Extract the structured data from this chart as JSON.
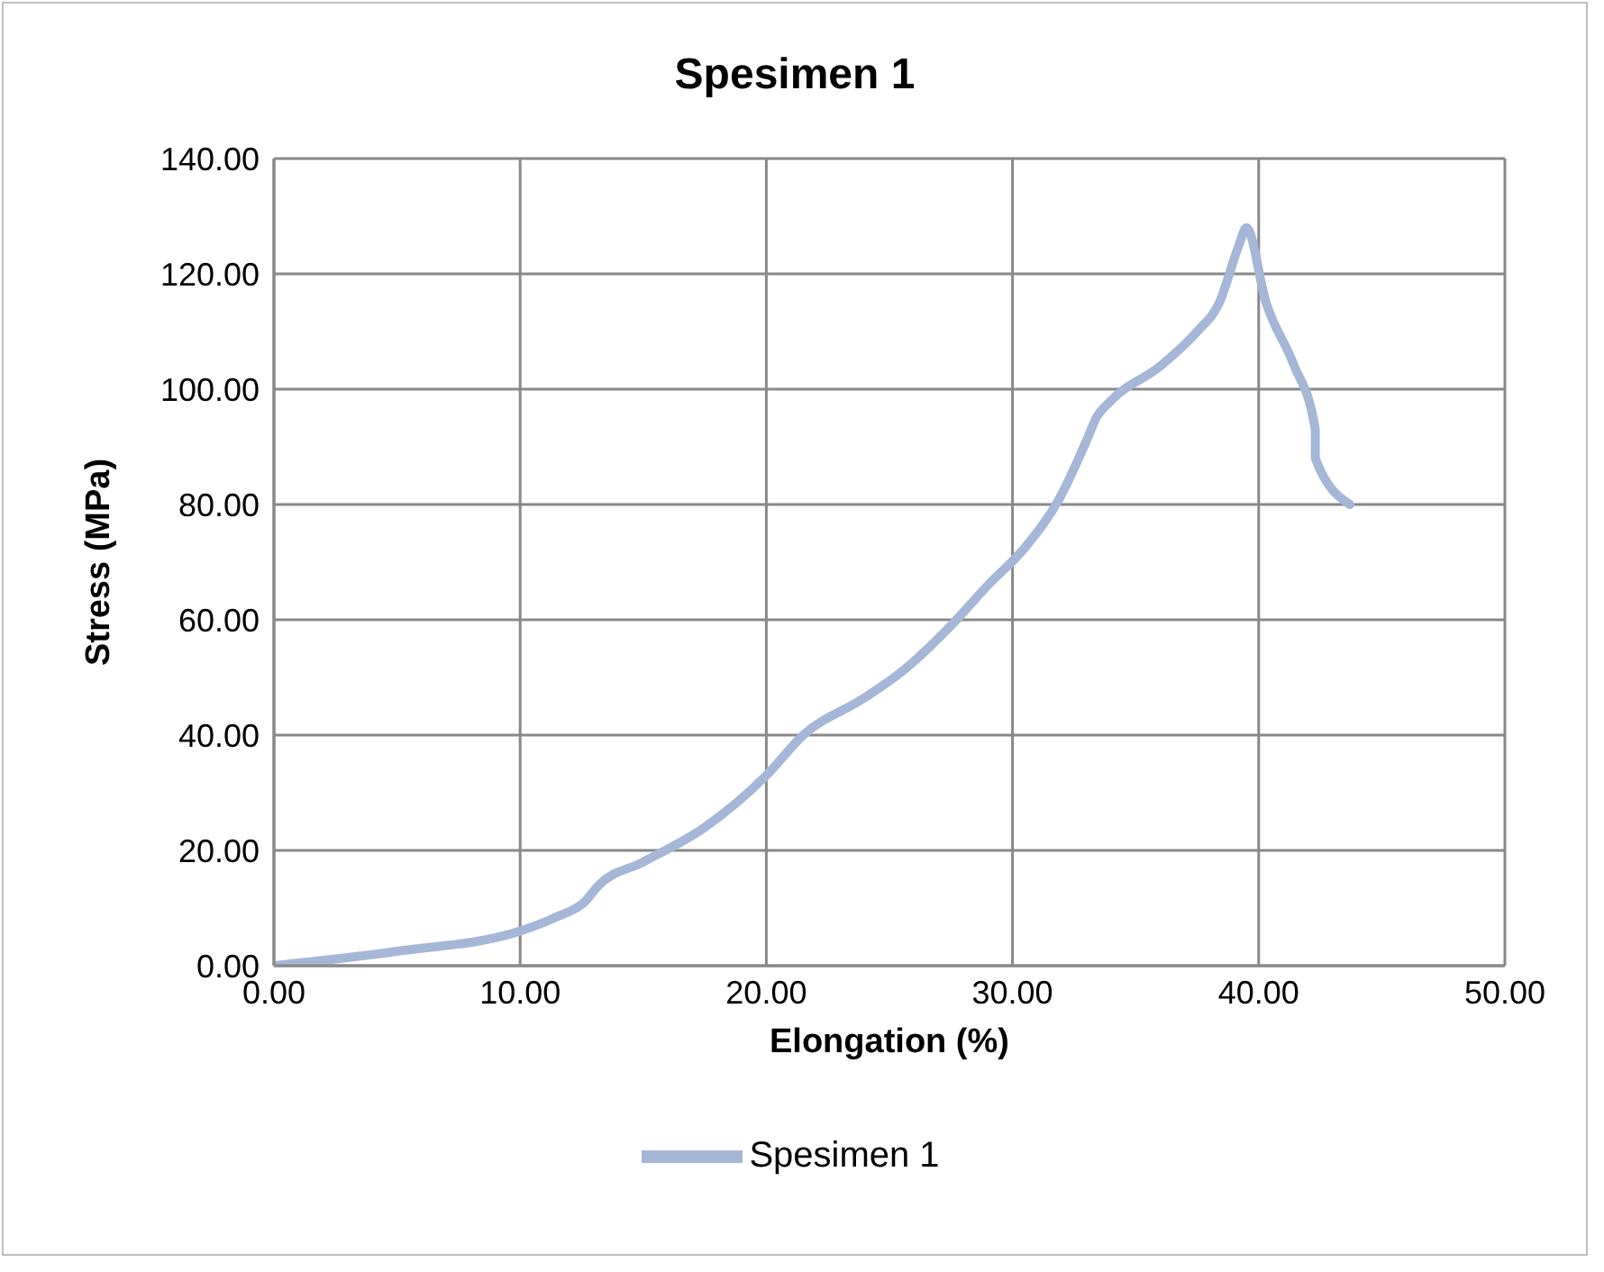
{
  "chart_data": {
    "type": "line",
    "title": "Spesimen 1",
    "xlabel": "Elongation (%)",
    "ylabel": "Stress (MPa)",
    "xlim": [
      0,
      50
    ],
    "xticks": [
      {
        "value": 0,
        "label": "0.00"
      },
      {
        "value": 10,
        "label": "10.00"
      },
      {
        "value": 20,
        "label": "20.00"
      },
      {
        "value": 30,
        "label": "30.00"
      },
      {
        "value": 40,
        "label": "40.00"
      },
      {
        "value": 50,
        "label": "50.00"
      }
    ],
    "ylim": [
      0,
      140
    ],
    "yticks": [
      {
        "value": 0,
        "label": "0.00"
      },
      {
        "value": 20,
        "label": "20.00"
      },
      {
        "value": 40,
        "label": "40.00"
      },
      {
        "value": 60,
        "label": "60.00"
      },
      {
        "value": 80,
        "label": "80.00"
      },
      {
        "value": 100,
        "label": "100.00"
      },
      {
        "value": 120,
        "label": "120.00"
      },
      {
        "value": 140,
        "label": "140.00"
      }
    ],
    "grid": true,
    "legend": "bottom",
    "marker": "none",
    "line_style": "solid",
    "series": [
      {
        "name": "Spesimen 1",
        "color": "#a5b6d6",
        "x": [
          0,
          5,
          10,
          11.5,
          12.6,
          13.2,
          15,
          17.5,
          20,
          21.5,
          24,
          25.5,
          27.5,
          29,
          30.5,
          31.9,
          33,
          33.4,
          34,
          36,
          37.5,
          38.4,
          39.2,
          39.5,
          40.3,
          41.4,
          42.3,
          42.3,
          43.7
        ],
        "values": [
          0,
          2.5,
          6,
          8.5,
          11,
          14,
          18,
          24,
          33,
          40,
          46.5,
          51,
          59,
          66,
          72.5,
          81,
          91,
          95,
          98,
          104,
          110,
          115,
          125,
          128,
          115,
          104.5,
          93,
          88,
          80
        ]
      }
    ]
  }
}
